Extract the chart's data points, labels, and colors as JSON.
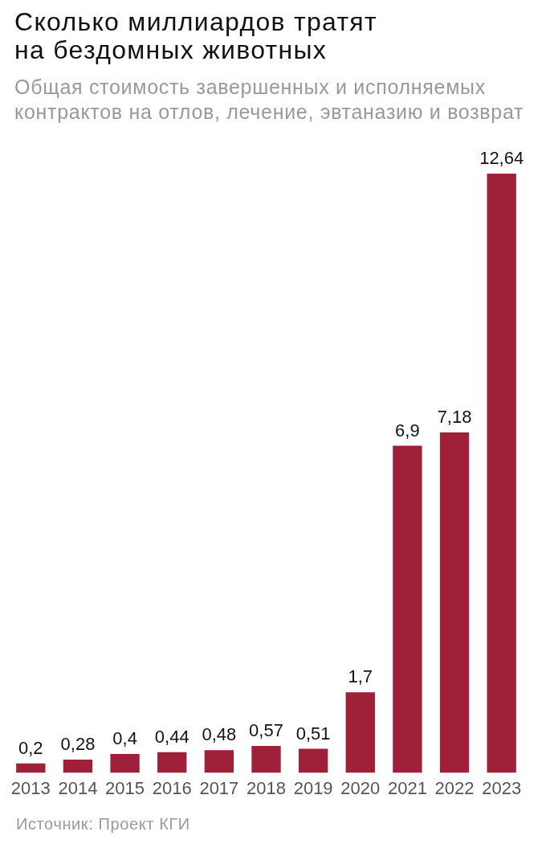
{
  "chart_data": {
    "type": "bar",
    "title": "Сколько миллиардов тратят на бездомных животных",
    "subtitle": "Общая стоимость завершенных и исполняемых контрактов на отлов, лечение, эвтаназию и возврат",
    "categories": [
      "2013",
      "2014",
      "2015",
      "2016",
      "2017",
      "2018",
      "2019",
      "2020",
      "2021",
      "2022",
      "2023"
    ],
    "values": [
      0.2,
      0.28,
      0.4,
      0.44,
      0.48,
      0.57,
      0.51,
      1.7,
      6.9,
      7.18,
      12.64
    ],
    "value_labels": [
      "0,2",
      "0,28",
      "0,4",
      "0,44",
      "0,48",
      "0,57",
      "0,51",
      "1,7",
      "6,9",
      "7,18",
      "12,64"
    ],
    "color": "#9e2039",
    "tick_labels": "x",
    "annotations": [
      "Источник: Проект КГИ"
    ]
  }
}
